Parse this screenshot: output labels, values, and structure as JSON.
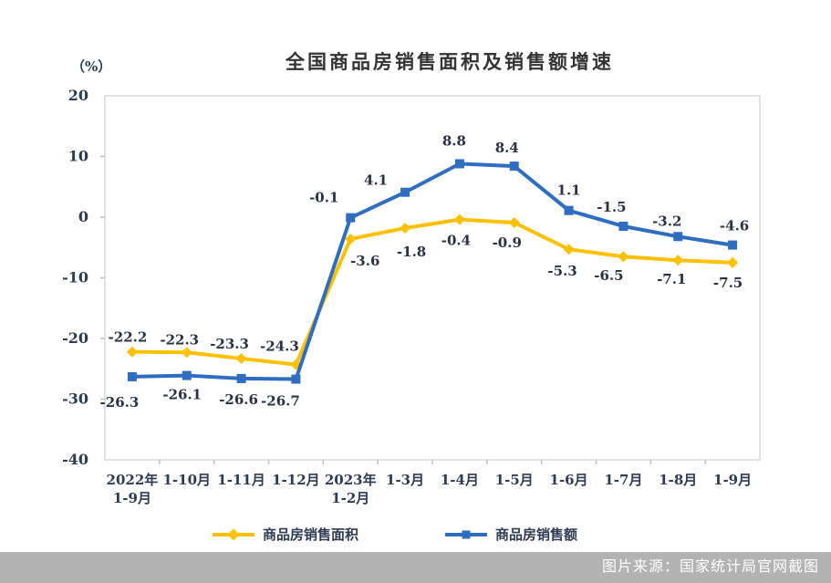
{
  "page": {
    "source_note": "图片来源：国家统计局官网截图"
  },
  "colors": {
    "series_area": "#FFC000",
    "series_value": "#2E6DC0",
    "axis_text": "#2F3B52",
    "data_label_text": "#2B3143",
    "plot_border": "#D9D9D9",
    "tick_mark": "#BFBFBF",
    "title_text": "#333333",
    "banner_bg": "#B3B3B3",
    "banner_text": "#FFFFFF"
  },
  "chart_data": {
    "type": "line",
    "title": "全国商品房销售面积及销售额增速",
    "unit_label": "（%）",
    "categories": [
      [
        "2022年",
        "1-9月"
      ],
      [
        "1-10月"
      ],
      [
        "1-11月"
      ],
      [
        "1-12月"
      ],
      [
        "2023年",
        "1-2月"
      ],
      [
        "1-3月"
      ],
      [
        "1-4月"
      ],
      [
        "1-5月"
      ],
      [
        "1-6月"
      ],
      [
        "1-7月"
      ],
      [
        "1-8月"
      ],
      [
        "1-9月"
      ]
    ],
    "series": [
      {
        "name": "商品房销售面积",
        "marker": "diamond",
        "color": "#FFC000",
        "values": [
          -22.2,
          -22.3,
          -23.3,
          -24.3,
          -3.6,
          -1.8,
          -0.4,
          -0.9,
          -5.3,
          -6.5,
          -7.1,
          -7.5
        ]
      },
      {
        "name": "商品房销售额",
        "marker": "square",
        "color": "#2E6DC0",
        "values": [
          -26.3,
          -26.1,
          -26.6,
          -26.7,
          -0.1,
          4.1,
          8.8,
          8.4,
          1.1,
          -1.5,
          -3.2,
          -4.6
        ]
      }
    ],
    "y_ticks": [
      20,
      10,
      0,
      -10,
      -20,
      -30,
      -40
    ],
    "ylim": [
      -40,
      20
    ],
    "grid": false,
    "legend_position": "bottom",
    "data_labels_shown": true
  }
}
